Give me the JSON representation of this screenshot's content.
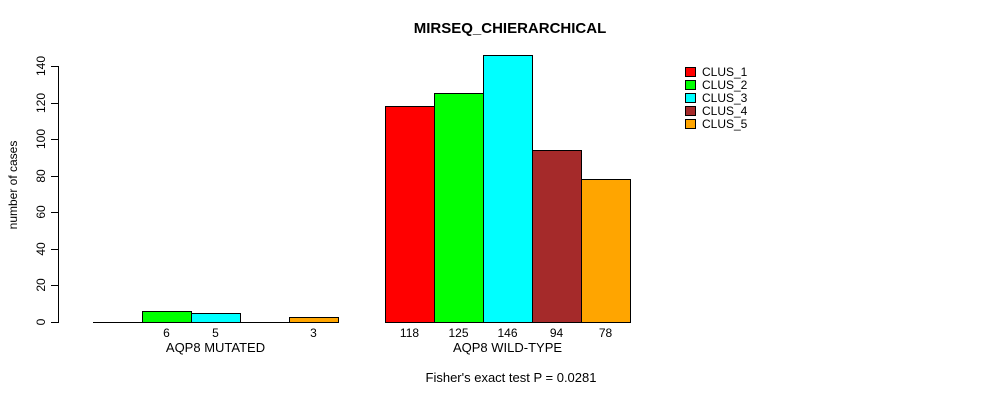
{
  "chart_data": {
    "type": "bar",
    "title": "MIRSEQ_CHIERARCHICAL",
    "ylabel": "number of cases",
    "ylim": [
      0,
      140
    ],
    "yticks": [
      0,
      20,
      40,
      60,
      80,
      100,
      120,
      140
    ],
    "grid": false,
    "legend_position": "right",
    "groups": [
      "AQP8 MUTATED",
      "AQP8 WILD-TYPE"
    ],
    "series": [
      {
        "name": "CLUS_1",
        "color": "#FF0000",
        "values": [
          0,
          118
        ]
      },
      {
        "name": "CLUS_2",
        "color": "#00FF00",
        "values": [
          6,
          125
        ]
      },
      {
        "name": "CLUS_3",
        "color": "#00FFFF",
        "values": [
          5,
          146
        ]
      },
      {
        "name": "CLUS_4",
        "color": "#A52A2A",
        "values": [
          0,
          94
        ]
      },
      {
        "name": "CLUS_5",
        "color": "#FFA500",
        "values": [
          3,
          78
        ]
      }
    ],
    "bar_labels": [
      [
        "",
        "6",
        "5",
        "",
        "3"
      ],
      [
        "118",
        "125",
        "146",
        "94",
        "78"
      ]
    ],
    "footer": "Fisher's exact test P = 0.0281",
    "axis_color": "#000000",
    "background_color": "#FFFFFF"
  }
}
